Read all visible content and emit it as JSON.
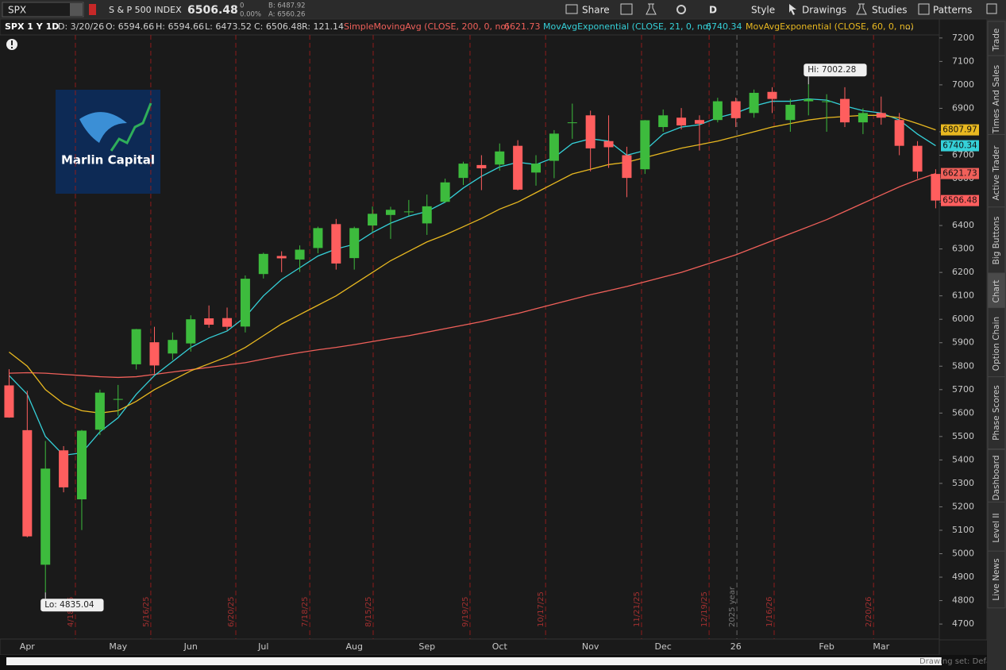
{
  "toolbar": {
    "symbol": "SPX",
    "name": "S & P 500 INDEX",
    "last": 6506.48,
    "change": 0,
    "change_pct": "0.00%",
    "bid": "B: 6487.92",
    "ask": "A: 6560.26",
    "buttons": [
      "Share",
      "D",
      "Style",
      "Drawings",
      "Studies",
      "Patterns"
    ]
  },
  "info_row": {
    "symbol": "SPX 1 Y 1D",
    "items": [
      "D: 3/20/26",
      "O: 6594.66",
      "H: 6594.66",
      "L: 6473.52",
      "C: 6506.48",
      "R: 121.14"
    ],
    "more": "..."
  },
  "logo": "Marlin Capital",
  "sidebar": [
    "Trade",
    "Times And Sales",
    "Active Trader",
    "Big Buttons",
    "Chart",
    "Option Chain",
    "Phase Scores",
    "Dashboard",
    "Level II",
    "Live News"
  ],
  "footer": "Drawing set: Default",
  "chart_data": {
    "type": "candlestick",
    "categories": [
      null,
      "Apr",
      null,
      null,
      null,
      null,
      "May",
      null,
      null,
      null,
      "Jun",
      null,
      null,
      null,
      "Jul",
      null,
      null,
      null,
      null,
      "Aug",
      null,
      null,
      null,
      "Sep",
      null,
      null,
      null,
      "Oct",
      null,
      null,
      null,
      null,
      "Nov",
      null,
      null,
      null,
      "Dec",
      null,
      null,
      null,
      "26",
      null,
      null,
      null,
      null,
      "Feb",
      null,
      null,
      "Mar",
      null,
      null,
      null
    ],
    "ohlc": {
      "open": [
        5718,
        5527,
        4953,
        5441,
        5232,
        5529,
        5659,
        5808,
        5902,
        5854,
        5897,
        6004,
        6005,
        5969,
        6193,
        6270,
        6255,
        6304,
        6406,
        6261,
        6400,
        6445,
        6457,
        6409,
        6501,
        6603,
        6658,
        6660,
        6740,
        6626,
        6676,
        6840,
        6870,
        6760,
        6700,
        6640,
        6820,
        6860,
        6850,
        6850,
        6930,
        6880,
        6970,
        6850,
        6930,
        6930,
        6940,
        6840,
        6880,
        6850,
        6740,
        6620
      ],
      "high": [
        5787,
        5695,
        5481,
        5459,
        5528,
        5700,
        5720,
        5959,
        5968,
        5944,
        6017,
        6059,
        6050,
        6187,
        6284,
        6290,
        6315,
        6395,
        6428,
        6395,
        6481,
        6480,
        6509,
        6532,
        6600,
        6672,
        6700,
        6750,
        6764,
        6700,
        6807,
        6920,
        6890,
        6870,
        6736,
        6850,
        6895,
        6901,
        6870,
        6945,
        6945,
        6980,
        6990,
        6940,
        7002.28,
        6960,
        6990,
        6900,
        6950,
        6880,
        6760,
        6640
      ],
      "low": [
        5580,
        5070,
        4835.04,
        5262,
        5101,
        5506,
        5589,
        5786,
        5768,
        5827,
        5862,
        5964,
        5953,
        5944,
        6174,
        6201,
        6202,
        6282,
        6212,
        6212,
        6373,
        6343,
        6441,
        6360,
        6496,
        6573,
        6551,
        6634,
        6550,
        6570,
        6602,
        6770,
        6631,
        6646,
        6521,
        6620,
        6800,
        6810,
        6720,
        6840,
        6820,
        6860,
        6880,
        6800,
        6870,
        6800,
        6820,
        6790,
        6830,
        6700,
        6600,
        6473.52
      ],
      "close": [
        5581,
        5074,
        5363,
        5283,
        5525,
        5687,
        5660,
        5958,
        5803,
        5912,
        6000,
        5977,
        5968,
        6173,
        6279,
        6260,
        6297,
        6389,
        6238,
        6389,
        6450,
        6467,
        6460,
        6482,
        6584,
        6664,
        6644,
        6716,
        6553,
        6664,
        6792,
        6840,
        6729,
        6734,
        6603,
        6849,
        6870,
        6827,
        6834,
        6930,
        6858,
        6966,
        6940,
        6915,
        6939,
        6930,
        6840,
        6880,
        6860,
        6740,
        6630,
        6506.48
      ]
    },
    "up_color": "#3dbb3d",
    "down_color": "#ff5e5e",
    "series": [
      {
        "name": "SimpleMovingAvg (CLOSE, 200, 0, no)",
        "color": "#f0605a",
        "values": [
          5770,
          5772,
          5770,
          5765,
          5760,
          5755,
          5752,
          5755,
          5765,
          5775,
          5785,
          5795,
          5805,
          5815,
          5830,
          5845,
          5858,
          5870,
          5880,
          5892,
          5905,
          5918,
          5930,
          5945,
          5960,
          5975,
          5990,
          6008,
          6025,
          6045,
          6065,
          6085,
          6105,
          6122,
          6140,
          6160,
          6180,
          6200,
          6225,
          6250,
          6275,
          6305,
          6335,
          6365,
          6395,
          6425,
          6460,
          6495,
          6530,
          6565,
          6595,
          6621.73
        ]
      },
      {
        "name": "MovAvgExponential (CLOSE, 21, 0, no)",
        "color": "#35d0d8",
        "values": [
          5760,
          5680,
          5500,
          5420,
          5430,
          5520,
          5580,
          5680,
          5760,
          5820,
          5880,
          5920,
          5950,
          6010,
          6100,
          6170,
          6220,
          6270,
          6300,
          6320,
          6370,
          6410,
          6440,
          6460,
          6500,
          6560,
          6610,
          6650,
          6670,
          6660,
          6690,
          6750,
          6770,
          6760,
          6700,
          6720,
          6790,
          6820,
          6830,
          6860,
          6880,
          6910,
          6930,
          6930,
          6940,
          6935,
          6910,
          6890,
          6880,
          6850,
          6790,
          6740.34
        ]
      },
      {
        "name": "MovAvgExponential (CLOSE, 60, 0, no)",
        "color": "#e8b820",
        "values": [
          5860,
          5800,
          5700,
          5640,
          5610,
          5600,
          5610,
          5650,
          5700,
          5740,
          5780,
          5810,
          5840,
          5880,
          5930,
          5980,
          6020,
          6060,
          6100,
          6150,
          6200,
          6250,
          6290,
          6330,
          6360,
          6395,
          6430,
          6470,
          6500,
          6540,
          6580,
          6620,
          6640,
          6660,
          6670,
          6690,
          6710,
          6730,
          6745,
          6760,
          6780,
          6800,
          6820,
          6835,
          6850,
          6860,
          6865,
          6870,
          6870,
          6860,
          6835,
          6807.97
        ]
      }
    ],
    "event_lines": [
      {
        "label": "4/18/25",
        "x": 3.65
      },
      {
        "label": "5/16/25",
        "x": 7.8
      },
      {
        "label": "6/20/25",
        "x": 12.48
      },
      {
        "label": "7/18/25",
        "x": 16.55
      },
      {
        "label": "8/15/25",
        "x": 20.04
      },
      {
        "label": "9/19/25",
        "x": 25.37
      },
      {
        "label": "10/17/25",
        "x": 29.53
      },
      {
        "label": "11/21/25",
        "x": 34.81
      },
      {
        "label": "12/19/25",
        "x": 38.53
      },
      {
        "label": "1/16/26",
        "x": 42.11
      },
      {
        "label": "2/20/26",
        "x": 47.58
      }
    ],
    "year_line": {
      "label": "2025 year",
      "x": 40.06
    },
    "annotations": [
      {
        "text": "Hi: 7002.28",
        "index": 44,
        "at": "high"
      },
      {
        "text": "Lo: 4835.04",
        "index": 2,
        "at": "low"
      }
    ],
    "xlim": [
      -0.5,
      51.2
    ],
    "ylim": [
      4636,
      7213
    ],
    "yticks": [
      4700,
      4800,
      4900,
      5000,
      5100,
      5200,
      5300,
      5400,
      5500,
      5600,
      5700,
      5800,
      5900,
      6000,
      6100,
      6200,
      6300,
      6400,
      6500,
      6600,
      6700,
      6800,
      6900,
      7000,
      7100,
      7200
    ],
    "grid": false
  }
}
